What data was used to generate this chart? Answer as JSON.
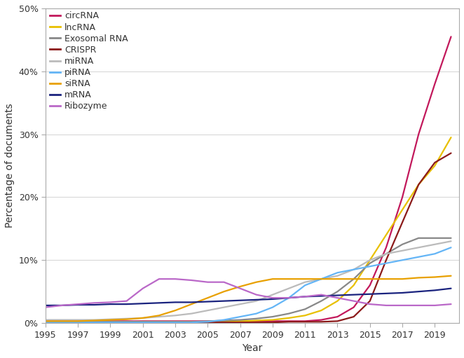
{
  "years": [
    1995,
    1996,
    1997,
    1998,
    1999,
    2000,
    2001,
    2002,
    2003,
    2004,
    2005,
    2006,
    2007,
    2008,
    2009,
    2010,
    2011,
    2012,
    2013,
    2014,
    2015,
    2016,
    2017,
    2018,
    2019,
    2020
  ],
  "series": {
    "circRNA": {
      "color": "#C2185B",
      "values": [
        0.3,
        0.3,
        0.3,
        0.3,
        0.3,
        0.3,
        0.3,
        0.3,
        0.3,
        0.3,
        0.3,
        0.3,
        0.3,
        0.3,
        0.3,
        0.3,
        0.3,
        0.5,
        1.0,
        2.5,
        6.0,
        12.0,
        20.0,
        30.0,
        38.0,
        45.5
      ]
    },
    "lncRNA": {
      "color": "#E8C000",
      "values": [
        0.2,
        0.2,
        0.2,
        0.2,
        0.2,
        0.2,
        0.2,
        0.2,
        0.2,
        0.2,
        0.2,
        0.2,
        0.3,
        0.4,
        0.5,
        0.8,
        1.2,
        2.0,
        3.5,
        6.0,
        10.0,
        14.0,
        18.0,
        22.0,
        25.0,
        29.5
      ]
    },
    "Exosomal RNA": {
      "color": "#888888",
      "values": [
        0.2,
        0.2,
        0.2,
        0.2,
        0.2,
        0.2,
        0.2,
        0.2,
        0.2,
        0.2,
        0.3,
        0.4,
        0.5,
        0.7,
        1.0,
        1.5,
        2.2,
        3.5,
        5.0,
        7.0,
        9.5,
        11.0,
        12.5,
        13.5,
        13.5,
        13.5
      ]
    },
    "CRISPR": {
      "color": "#8B1A1A",
      "values": [
        0.1,
        0.1,
        0.1,
        0.1,
        0.1,
        0.1,
        0.1,
        0.1,
        0.1,
        0.1,
        0.1,
        0.1,
        0.1,
        0.1,
        0.1,
        0.2,
        0.2,
        0.2,
        0.3,
        1.0,
        3.5,
        10.0,
        16.0,
        22.0,
        25.5,
        27.0
      ]
    },
    "miRNA": {
      "color": "#BBBBBB",
      "values": [
        0.5,
        0.5,
        0.5,
        0.5,
        0.6,
        0.7,
        0.8,
        1.0,
        1.2,
        1.5,
        2.0,
        2.5,
        3.0,
        3.5,
        4.5,
        5.5,
        6.5,
        7.0,
        7.5,
        8.5,
        10.0,
        11.0,
        11.5,
        12.0,
        12.5,
        13.0
      ]
    },
    "piRNA": {
      "color": "#64B5F6",
      "values": [
        0.1,
        0.1,
        0.1,
        0.1,
        0.1,
        0.1,
        0.1,
        0.1,
        0.1,
        0.1,
        0.2,
        0.5,
        1.0,
        1.5,
        2.5,
        4.0,
        6.0,
        7.0,
        8.0,
        8.5,
        9.0,
        9.5,
        10.0,
        10.5,
        11.0,
        12.0
      ]
    },
    "siRNA": {
      "color": "#E8A000",
      "values": [
        0.3,
        0.3,
        0.3,
        0.4,
        0.5,
        0.6,
        0.8,
        1.2,
        2.0,
        3.0,
        4.0,
        5.0,
        5.8,
        6.5,
        7.0,
        7.0,
        7.0,
        7.0,
        7.0,
        7.0,
        7.0,
        7.0,
        7.0,
        7.2,
        7.3,
        7.5
      ]
    },
    "mRNA": {
      "color": "#1A237E",
      "values": [
        2.8,
        2.8,
        2.9,
        2.9,
        3.0,
        3.0,
        3.1,
        3.2,
        3.3,
        3.3,
        3.4,
        3.5,
        3.6,
        3.7,
        3.8,
        4.0,
        4.2,
        4.3,
        4.4,
        4.5,
        4.6,
        4.7,
        4.8,
        5.0,
        5.2,
        5.5
      ]
    },
    "Ribozyme": {
      "color": "#BA68C8",
      "values": [
        2.5,
        2.8,
        3.0,
        3.2,
        3.3,
        3.5,
        5.5,
        7.0,
        7.0,
        6.8,
        6.5,
        6.5,
        5.5,
        4.5,
        4.0,
        4.0,
        4.2,
        4.5,
        4.0,
        3.5,
        3.0,
        2.8,
        2.8,
        2.8,
        2.8,
        3.0
      ]
    }
  },
  "legend_order": [
    "circRNA",
    "lncRNA",
    "Exosomal RNA",
    "CRISPR",
    "miRNA",
    "piRNA",
    "siRNA",
    "mRNA",
    "Ribozyme"
  ],
  "xlabel": "Year",
  "ylabel": "Percentage of documents",
  "ylim": [
    0,
    50
  ],
  "yticks": [
    0,
    10,
    20,
    30,
    40,
    50
  ],
  "xticks": [
    1995,
    1997,
    1999,
    2001,
    2003,
    2005,
    2007,
    2009,
    2011,
    2013,
    2015,
    2017,
    2019
  ],
  "background_color": "#FFFFFF",
  "plot_bg_color": "#FFFFFF",
  "grid_color": "#D8D8D8",
  "border_color": "#AAAAAA",
  "tick_label_fontsize": 9,
  "axis_label_fontsize": 10,
  "legend_fontsize": 9,
  "linewidth": 1.6
}
